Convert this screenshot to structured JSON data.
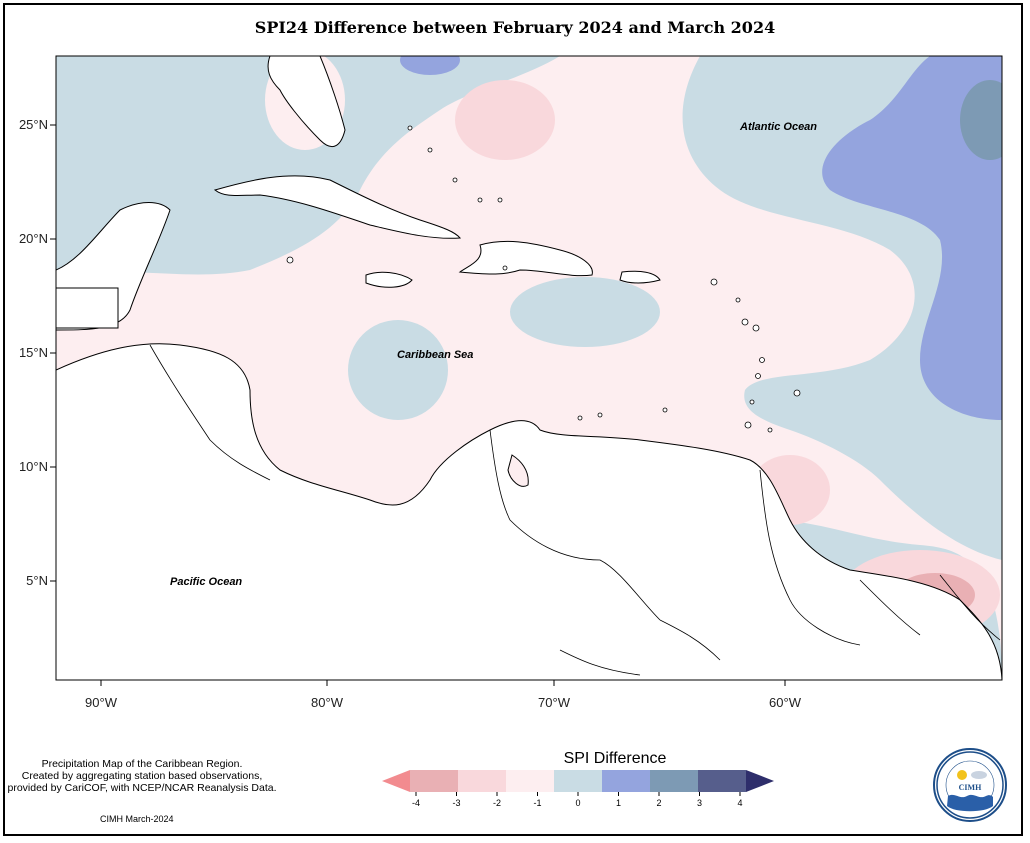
{
  "title": "SPI24 Difference between February 2024 and March 2024",
  "map": {
    "lon_ticks": [
      "90°W",
      "80°W",
      "70°W",
      "60°W"
    ],
    "lat_ticks": [
      "25°N",
      "20°N",
      "15°N",
      "10°N",
      "5°N"
    ],
    "lon_range": [
      -92,
      -50
    ],
    "lat_range": [
      0.6,
      28
    ],
    "ocean_labels": {
      "atlantic": "Atlantic Ocean",
      "caribbean": "Caribbean Sea",
      "pacific": "Pacific Ocean"
    }
  },
  "legend": {
    "title": "SPI Difference",
    "ticks": [
      "-4",
      "-3",
      "-2",
      "-1",
      "0",
      "1",
      "2",
      "3",
      "4"
    ],
    "colors": [
      "#f28b8f",
      "#e9b0b4",
      "#f9d8dc",
      "#fdeef0",
      "#c9dce4",
      "#94a4de",
      "#7d9ab4",
      "#565e8c",
      "#2e2e6b"
    ]
  },
  "notes": {
    "line1": "Precipitation Map of the Caribbean Region.",
    "line2": "Created by aggregating station based observations,",
    "line3": "provided by CariCOF, with NCEP/NCAR Reanalysis Data.",
    "credit": "CIMH March-2024"
  },
  "logo": {
    "text": "CIMH",
    "ring_text": "Caribbean Institute for Meteorology and Hydrology"
  }
}
